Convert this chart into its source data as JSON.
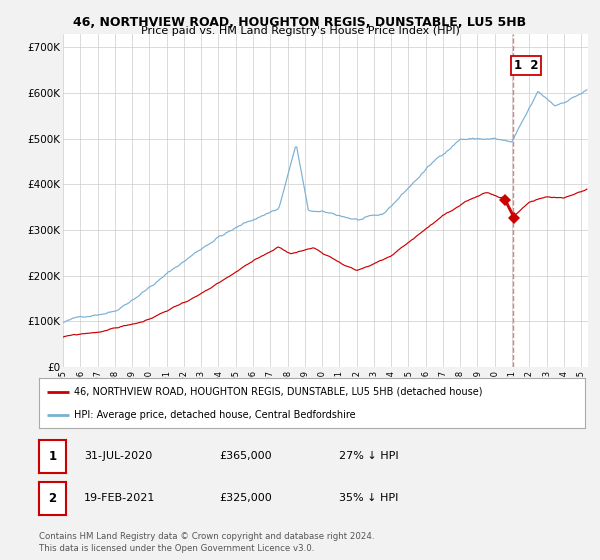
{
  "title": "46, NORTHVIEW ROAD, HOUGHTON REGIS, DUNSTABLE, LU5 5HB",
  "subtitle": "Price paid vs. HM Land Registry's House Price Index (HPI)",
  "legend_red": "46, NORTHVIEW ROAD, HOUGHTON REGIS, DUNSTABLE, LU5 5HB (detached house)",
  "legend_blue": "HPI: Average price, detached house, Central Bedfordshire",
  "annotation1_num": "1",
  "annotation1_date": "31-JUL-2020",
  "annotation1_price": "£365,000",
  "annotation1_hpi": "27% ↓ HPI",
  "annotation2_num": "2",
  "annotation2_date": "19-FEB-2021",
  "annotation2_price": "£325,000",
  "annotation2_hpi": "35% ↓ HPI",
  "footer": "Contains HM Land Registry data © Crown copyright and database right 2024.\nThis data is licensed under the Open Government Licence v3.0.",
  "ylim": [
    0,
    730000
  ],
  "yticks": [
    0,
    100000,
    200000,
    300000,
    400000,
    500000,
    600000,
    700000
  ],
  "ytick_labels": [
    "£0",
    "£100K",
    "£200K",
    "£300K",
    "£400K",
    "£500K",
    "£600K",
    "£700K"
  ],
  "red_color": "#cc0000",
  "blue_color": "#7ab0d4",
  "vline_color": "#e08080",
  "vline_x": 2021.05,
  "marker1_x": 2020.58,
  "marker1_y": 365000,
  "marker2_x": 2021.12,
  "marker2_y": 325000,
  "background_color": "#f5f5f5",
  "plot_bg_color": "#ffffff",
  "grid_color": "#cccccc",
  "xmin": 1995,
  "xmax": 2025.4
}
